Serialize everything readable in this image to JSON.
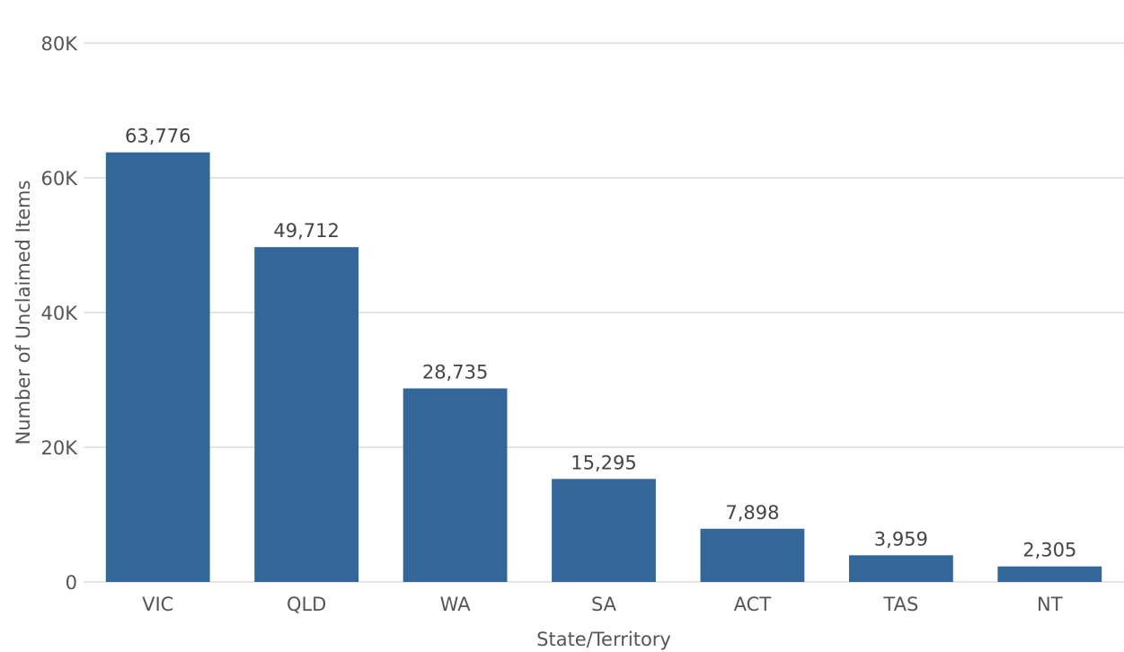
{
  "chart_data": {
    "type": "bar",
    "categories": [
      "VIC",
      "QLD",
      "WA",
      "SA",
      "ACT",
      "TAS",
      "NT"
    ],
    "values": [
      63776,
      49712,
      28735,
      15295,
      7898,
      3959,
      2305
    ],
    "data_labels": [
      "63,776",
      "49,712",
      "28,735",
      "15,295",
      "7,898",
      "3,959",
      "2,305"
    ],
    "title": "",
    "xlabel": "State/Territory",
    "ylabel": "Number of Unclaimed Items",
    "ylim": [
      0,
      80000
    ],
    "yticks": [
      0,
      20000,
      40000,
      60000,
      80000
    ],
    "ytick_labels": [
      "0",
      "20K",
      "40K",
      "60K",
      "80K"
    ],
    "grid": true,
    "bar_color": "#336699"
  }
}
